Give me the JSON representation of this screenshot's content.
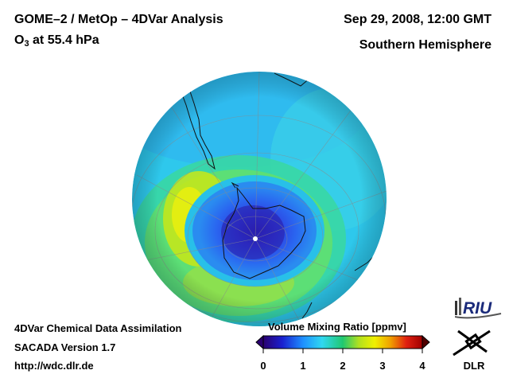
{
  "header": {
    "title": "GOME–2 / MetOp – 4DVar Analysis",
    "species_main": "O",
    "species_sub": "3",
    "species_rest": " at 55.4 hPa",
    "date": "Sep 29, 2008, 12:00 GMT",
    "hemisphere": "Southern Hemisphere"
  },
  "footer": {
    "line1": "4DVar Chemical Data Assimilation",
    "line2": "SACADA Version 1.7",
    "line3": "http://wdc.dlr.de"
  },
  "colorbar": {
    "label": "Volume Mixing Ratio [ppmv]",
    "ticks": [
      "0",
      "1",
      "2",
      "3",
      "4"
    ],
    "range": [
      0,
      4
    ],
    "colors": [
      "#2a0070",
      "#1a20d0",
      "#1e90ff",
      "#30d8f0",
      "#20c870",
      "#b0e020",
      "#f0f000",
      "#f0a000",
      "#e02010",
      "#a00000"
    ]
  },
  "logos": {
    "riu": "RIU",
    "dlr": "DLR"
  },
  "map": {
    "ozone_hole_center_ppmv": 0.8,
    "collar_ppmv": 2.2,
    "background_ppmv": 1.4
  }
}
